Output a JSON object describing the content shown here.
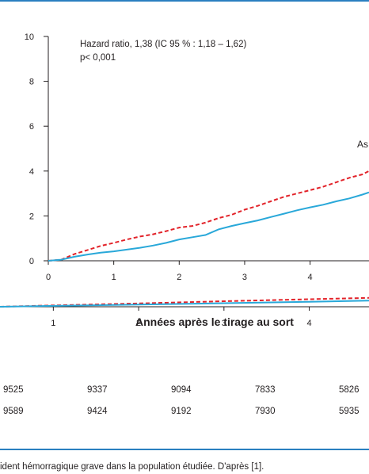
{
  "chart_data": [
    {
      "type": "line",
      "annotations": [
        "Hazard ratio, 1,38 (IC 95 % : 1,18 – 1,62)",
        "p< 0,001"
      ],
      "series_label": "As",
      "y_ticks": [
        "0",
        "2",
        "4",
        "6",
        "8",
        "10"
      ],
      "x_ticks": [
        "0",
        "1",
        "2",
        "3",
        "4"
      ],
      "ylim": [
        0,
        10
      ],
      "xlim": [
        0,
        4.9
      ],
      "series": [
        {
          "color": "#e2232a",
          "style": "dashed",
          "x": [
            0,
            0.2,
            0.4,
            0.6,
            0.8,
            1.0,
            1.2,
            1.4,
            1.6,
            1.8,
            2.0,
            2.2,
            2.4,
            2.6,
            2.8,
            3.0,
            3.2,
            3.4,
            3.6,
            3.8,
            4.0,
            4.2,
            4.4,
            4.6,
            4.8,
            4.9
          ],
          "y": [
            0,
            0.05,
            0.3,
            0.48,
            0.66,
            0.8,
            0.95,
            1.08,
            1.18,
            1.32,
            1.48,
            1.55,
            1.7,
            1.9,
            2.05,
            2.28,
            2.45,
            2.65,
            2.85,
            3.0,
            3.15,
            3.3,
            3.5,
            3.7,
            3.85,
            4.0
          ]
        },
        {
          "color": "#29a8d9",
          "style": "solid",
          "x": [
            0,
            0.2,
            0.4,
            0.6,
            0.8,
            1.0,
            1.2,
            1.4,
            1.6,
            1.8,
            2.0,
            2.2,
            2.4,
            2.6,
            2.8,
            3.0,
            3.2,
            3.4,
            3.6,
            3.8,
            4.0,
            4.2,
            4.4,
            4.6,
            4.8,
            4.9
          ],
          "y": [
            0,
            0.05,
            0.18,
            0.28,
            0.36,
            0.42,
            0.5,
            0.58,
            0.68,
            0.8,
            0.95,
            1.05,
            1.15,
            1.4,
            1.55,
            1.68,
            1.8,
            1.95,
            2.1,
            2.25,
            2.38,
            2.5,
            2.65,
            2.78,
            2.95,
            3.05
          ]
        }
      ]
    },
    {
      "type": "line",
      "xlabel": "Années après le tirage au sort",
      "x_ticks": [
        "1",
        "2",
        "3",
        "4"
      ],
      "xlim": [
        0.375,
        4.7
      ],
      "ylim": [
        0,
        1
      ],
      "series": [
        {
          "color": "#e2232a",
          "style": "dashed",
          "x": [
            0.375,
            1,
            2,
            3,
            4,
            4.7
          ],
          "y": [
            0,
            0.12,
            0.3,
            0.5,
            0.68,
            0.8
          ]
        },
        {
          "color": "#29a8d9",
          "style": "solid",
          "x": [
            0.375,
            1,
            2,
            3,
            4,
            4.7
          ],
          "y": [
            0,
            0.08,
            0.2,
            0.32,
            0.45,
            0.55
          ]
        }
      ]
    }
  ],
  "risk_table": {
    "rows": [
      [
        "9525",
        "9337",
        "9094",
        "7833",
        "5826"
      ],
      [
        "9589",
        "9424",
        "9192",
        "7930",
        "5935"
      ]
    ]
  },
  "caption": "ident hémorragique grave dans la population étudiée. D'après [1]."
}
